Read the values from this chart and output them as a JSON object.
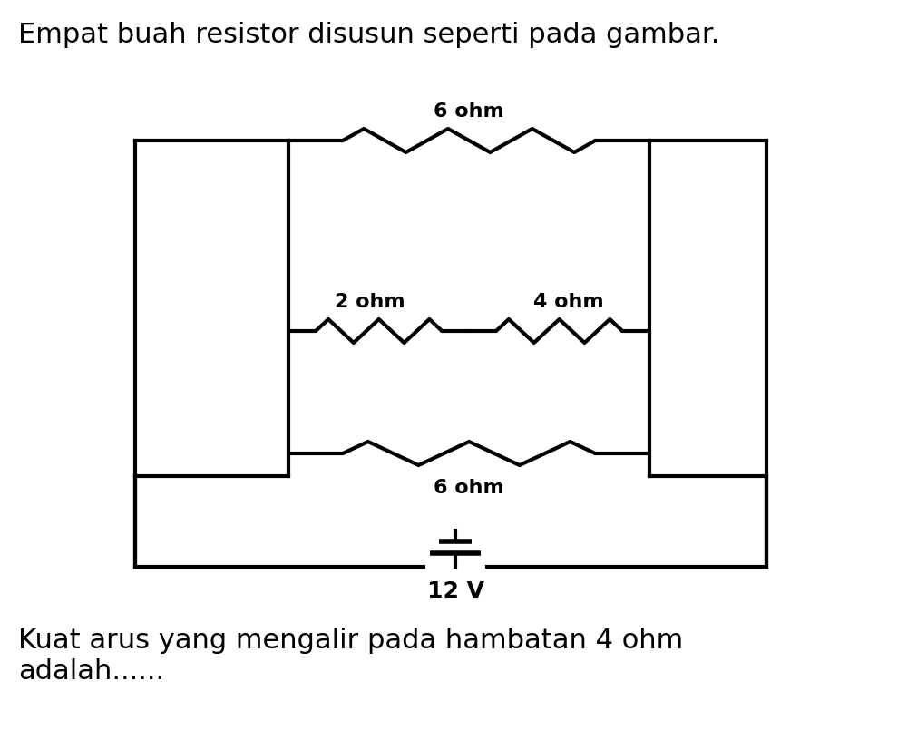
{
  "title": "Empat buah resistor disusun seperti pada gambar.",
  "question": "Kuat arus yang mengalir pada hambatan 4 ohm\nadalah......",
  "bg_color": "#ffffff",
  "line_color": "#000000",
  "line_width": 3.0,
  "resistor_label_fontsize": 16,
  "text_fontsize": 22,
  "battery_voltage": "12 V",
  "resistors": [
    {
      "label": "6 ohm",
      "branch": "top"
    },
    {
      "label": "2 ohm",
      "branch": "middle_left"
    },
    {
      "label": "4 ohm",
      "branch": "middle_right"
    },
    {
      "label": "6 ohm",
      "branch": "bottom"
    }
  ]
}
